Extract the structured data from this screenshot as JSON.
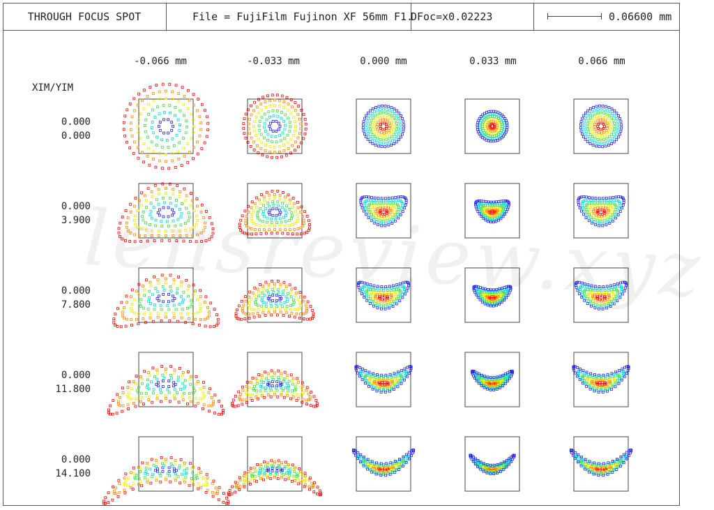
{
  "header": {
    "title": "THROUGH FOCUS SPOT",
    "file": "File = FujiFilm Fujinon XF 56mm F1.2",
    "defocus": "DFoc=x0.02223",
    "scale_label": "0.06600 mm"
  },
  "columns": [
    "-0.066 mm",
    "-0.033 mm",
    "0.000 mm",
    "0.033 mm",
    "0.066 mm"
  ],
  "row_header": "XIM/YIM",
  "rows": [
    {
      "xim": "0.000",
      "yim": "0.000"
    },
    {
      "xim": "0.000",
      "yim": "3.900"
    },
    {
      "xim": "0.000",
      "yim": "7.800"
    },
    {
      "xim": "0.000",
      "yim": "11.800"
    },
    {
      "xim": "0.000",
      "yim": "14.100"
    }
  ],
  "watermark": "lensreview.xyz",
  "colors": {
    "ring1": "#ff0000",
    "ring2": "#ff8800",
    "ring3": "#eeee00",
    "ring4": "#44dd44",
    "ring5": "#00dddd",
    "ring6": "#2222ee",
    "box": "#444444"
  }
}
